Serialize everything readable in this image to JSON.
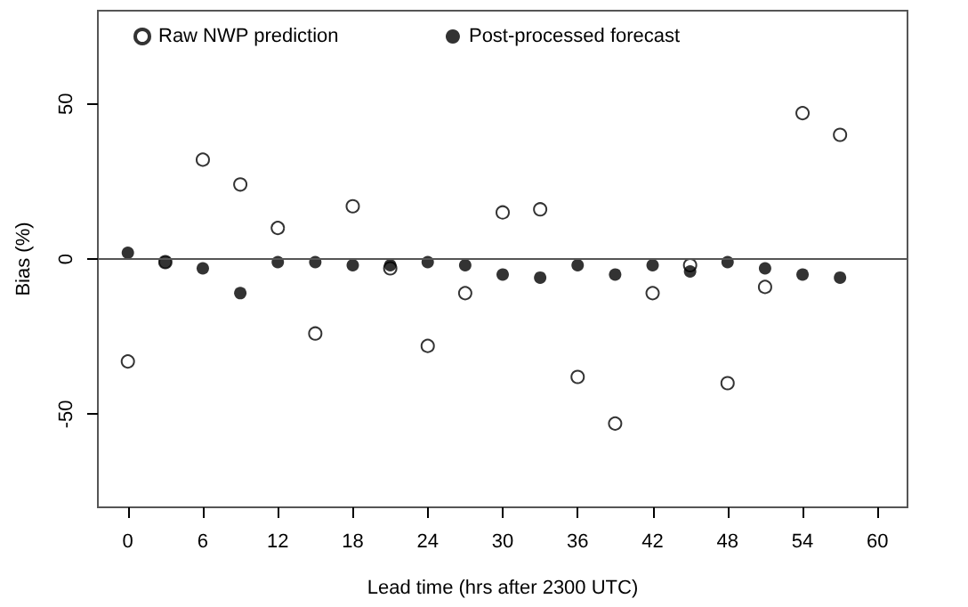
{
  "chart_data": {
    "type": "scatter",
    "xlabel": "Lead time (hrs after 2300 UTC)",
    "ylabel": "Bias (%)",
    "x": [
      0,
      3,
      6,
      9,
      12,
      15,
      18,
      21,
      24,
      27,
      30,
      33,
      36,
      39,
      42,
      45,
      48,
      51,
      54,
      57
    ],
    "series": [
      {
        "name": "Raw NWP prediction",
        "color": "#000000",
        "marker": "circle",
        "values": [
          -33,
          -1,
          32,
          24,
          10,
          -24,
          17,
          -3,
          -28,
          -11,
          15,
          16,
          -38,
          -53,
          -11,
          -2,
          -40,
          -9,
          47,
          40
        ]
      },
      {
        "name": "Post-processed forecast",
        "color": "#000000",
        "marker": "circle",
        "values": [
          2,
          -1,
          -3,
          -11,
          -1,
          -1,
          -2,
          -2,
          -1,
          -2,
          -5,
          -6,
          -2,
          -5,
          -2,
          -4,
          -1,
          -3,
          -5,
          -6
        ]
      }
    ],
    "xlim": [
      -2.4,
      62.4
    ],
    "xticks": [
      0,
      6,
      12,
      18,
      24,
      30,
      36,
      42,
      48,
      54,
      60
    ],
    "ylim": [
      -80,
      80
    ],
    "yticks": [
      -50,
      0,
      50
    ],
    "ref_lines": [
      {
        "axis": "y",
        "value": 0,
        "color": "#555555"
      }
    ],
    "grid": false,
    "legend": "top"
  }
}
